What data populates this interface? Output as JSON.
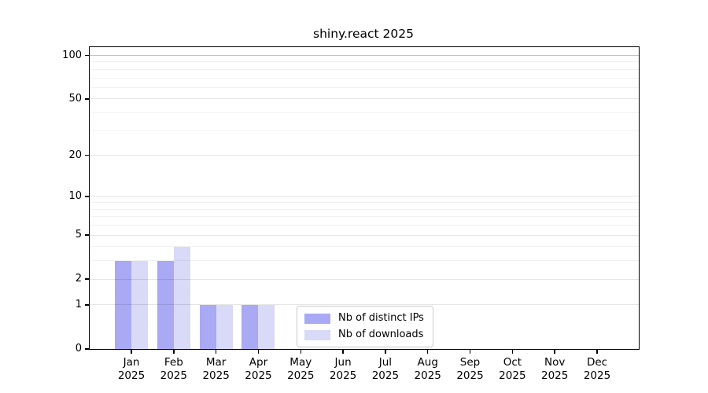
{
  "chart_data": {
    "type": "bar",
    "title": "shiny.react 2025",
    "categories": [
      "Jan 2025",
      "Feb 2025",
      "Mar 2025",
      "Apr 2025",
      "May 2025",
      "Jun 2025",
      "Jul 2025",
      "Aug 2025",
      "Sep 2025",
      "Oct 2025",
      "Nov 2025",
      "Dec 2025"
    ],
    "series": [
      {
        "name": "Nb of distinct IPs",
        "color": "#a9a9f4",
        "values": [
          3,
          3,
          1,
          1,
          0,
          0,
          0,
          0,
          0,
          0,
          0,
          0
        ]
      },
      {
        "name": "Nb of downloads",
        "color": "#d9d9f8",
        "values": [
          3,
          4,
          1,
          1,
          0,
          0,
          0,
          0,
          0,
          0,
          0,
          0
        ]
      }
    ],
    "xlabel": "",
    "ylabel": "",
    "y_axis": {
      "scale": "log1p",
      "major_ticks": [
        100,
        50,
        20,
        10,
        5,
        2,
        1,
        0
      ],
      "minor_ticks": [
        90,
        80,
        70,
        60,
        40,
        30,
        9,
        8,
        7,
        6,
        4,
        3
      ],
      "top_value": 114
    },
    "grid": "horizontal major+minor",
    "legend_position": "inside bottom-center",
    "colors": {
      "axis": "#000000",
      "grid_minor": "rgba(0,0,0,0.055)",
      "grid_major": "rgba(0,0,0,0.10)",
      "grid_top_line": "rgba(0,0,0,0.24)",
      "legend_border": "#cbcbcb",
      "background": "#ffffff"
    }
  }
}
